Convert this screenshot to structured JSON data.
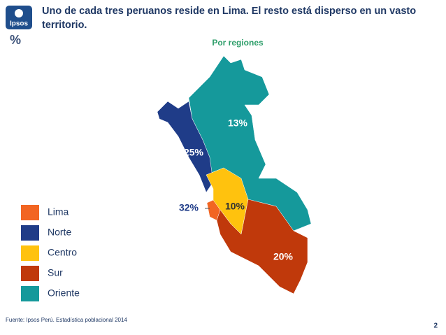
{
  "logo": "Ipsos",
  "unit": "%",
  "source": "Fuente: Ipsos Perú. Estadística poblacional 2014",
  "page_number": "2",
  "chart_data": {
    "type": "map",
    "title": "Uno de cada tres peruanos reside en Lima. El resto está disperso en un vasto territorio.",
    "subtitle": "Por regiones",
    "categories": [
      "Lima",
      "Norte",
      "Centro",
      "Sur",
      "Oriente"
    ],
    "colors": [
      "#f26522",
      "#1f3c88",
      "#ffc20e",
      "#c0390b",
      "#15999b"
    ],
    "values": [
      32,
      25,
      10,
      20,
      13
    ],
    "value_labels": [
      "32%",
      "25%",
      "10%",
      "20%",
      "13%"
    ]
  }
}
